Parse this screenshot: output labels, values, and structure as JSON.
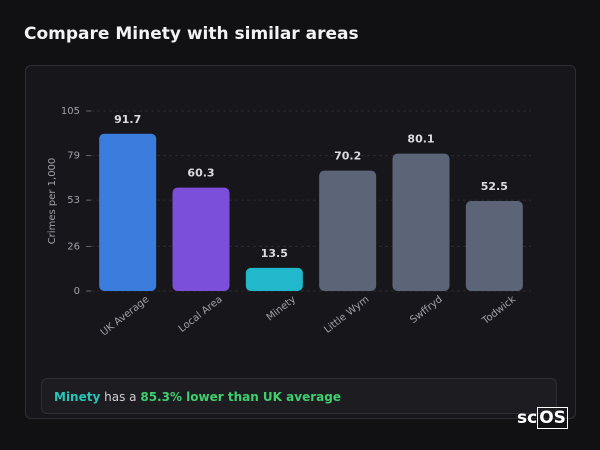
{
  "header": {
    "title": "Compare Minety with similar areas"
  },
  "chart_data": {
    "type": "bar",
    "y_label": "Crimes per 1,000",
    "categories": [
      "UK Average",
      "Local Area",
      "Minety",
      "Little Wym",
      "Swffryd",
      "Todwick"
    ],
    "values": [
      91.7,
      60.3,
      13.5,
      70.2,
      80.1,
      52.5
    ],
    "colors": [
      "#3b7ddd",
      "#7b4fd9",
      "#22b8cc",
      "#5c6577",
      "#5c6577",
      "#5c6577"
    ],
    "ylim": [
      0,
      105
    ],
    "yticks": [
      0,
      26,
      53,
      79,
      105
    ],
    "grid": true
  },
  "footer": {
    "area": "Minety",
    "text": "has a",
    "stat": "85.3% lower than UK average"
  },
  "logo": {
    "part1": "sc",
    "part2": "OS"
  }
}
